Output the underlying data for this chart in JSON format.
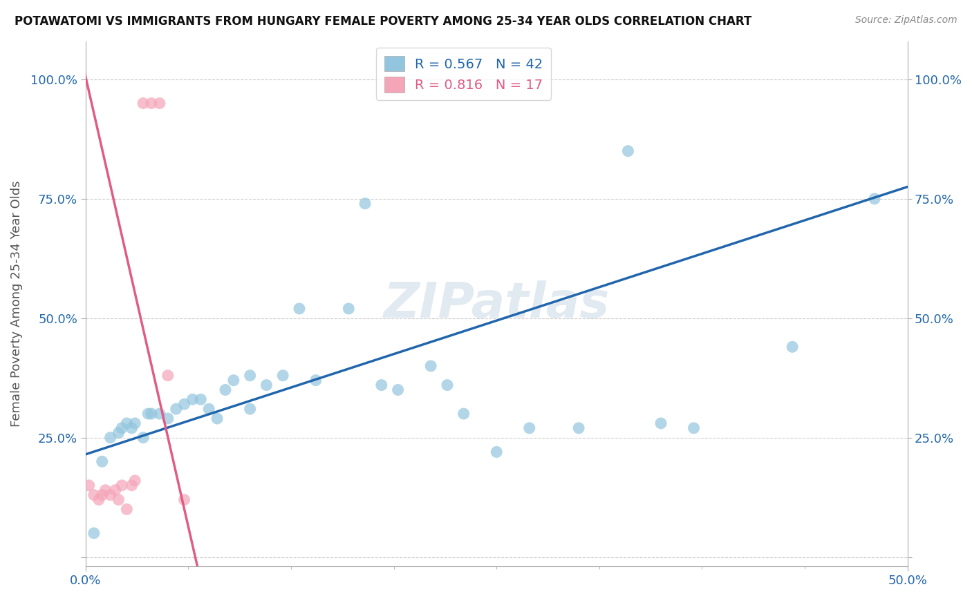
{
  "title": "POTAWATOMI VS IMMIGRANTS FROM HUNGARY FEMALE POVERTY AMONG 25-34 YEAR OLDS CORRELATION CHART",
  "source": "Source: ZipAtlas.com",
  "ylabel": "Female Poverty Among 25-34 Year Olds",
  "xlim": [
    0.0,
    0.5
  ],
  "ylim": [
    -0.02,
    1.08
  ],
  "blue_R": "0.567",
  "blue_N": "42",
  "pink_R": "0.816",
  "pink_N": "17",
  "blue_color": "#92c5de",
  "pink_color": "#f4a5b8",
  "blue_line_color": "#2166ac",
  "pink_line_color": "#e05c84",
  "watermark": "ZIPatlas",
  "blue_points_x": [
    0.005,
    0.01,
    0.015,
    0.02,
    0.022,
    0.025,
    0.028,
    0.03,
    0.035,
    0.038,
    0.04,
    0.045,
    0.05,
    0.055,
    0.06,
    0.065,
    0.07,
    0.075,
    0.08,
    0.085,
    0.09,
    0.1,
    0.1,
    0.11,
    0.12,
    0.13,
    0.14,
    0.16,
    0.17,
    0.18,
    0.19,
    0.21,
    0.22,
    0.23,
    0.25,
    0.27,
    0.3,
    0.33,
    0.35,
    0.37,
    0.43,
    0.48
  ],
  "blue_points_y": [
    0.05,
    0.2,
    0.25,
    0.26,
    0.27,
    0.28,
    0.27,
    0.28,
    0.25,
    0.3,
    0.3,
    0.3,
    0.29,
    0.31,
    0.32,
    0.33,
    0.33,
    0.31,
    0.29,
    0.35,
    0.37,
    0.31,
    0.38,
    0.36,
    0.38,
    0.52,
    0.37,
    0.52,
    0.74,
    0.36,
    0.35,
    0.4,
    0.36,
    0.3,
    0.22,
    0.27,
    0.27,
    0.85,
    0.28,
    0.27,
    0.44,
    0.75
  ],
  "pink_points_x": [
    0.002,
    0.005,
    0.008,
    0.01,
    0.012,
    0.015,
    0.018,
    0.02,
    0.022,
    0.025,
    0.028,
    0.03,
    0.035,
    0.04,
    0.045,
    0.05,
    0.06
  ],
  "pink_points_y": [
    0.15,
    0.13,
    0.12,
    0.13,
    0.14,
    0.13,
    0.14,
    0.12,
    0.15,
    0.1,
    0.15,
    0.16,
    0.95,
    0.95,
    0.95,
    0.38,
    0.12
  ],
  "background_color": "#ffffff",
  "grid_color": "#cccccc",
  "tick_color": "#2166ac",
  "label_color": "#555555"
}
